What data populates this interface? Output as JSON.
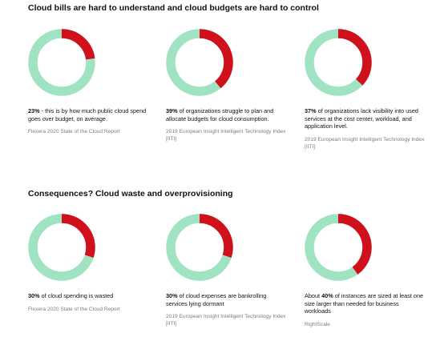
{
  "sections": [
    {
      "title": "Cloud bills are hard to understand and cloud budgets are hard to control",
      "stats": [
        {
          "pct": "23%",
          "text": " - this is by how much public cloud spend goes over budget, on average.",
          "source": "Flexera 2020 State of the Cloud Report"
        },
        {
          "pct": "39%",
          "text": " of organizations struggle to plan and allocate budgets for cloud consumption.",
          "source": "2019 European Insight Intelligent Technology Index [IITI]"
        },
        {
          "pct": "37%",
          "text": " of organizations lack visibility into used services at the cost center, workload, and application level.",
          "source": "2019 European Insight Intelligent Technology Index [IITI]"
        }
      ]
    },
    {
      "title": "Consequences? Cloud waste and overprovisioning",
      "stats": [
        {
          "pct": "30%",
          "text": " of cloud spending is wasted",
          "source": "Flexera 2020 State of the Cloud Report"
        },
        {
          "pct": "30%",
          "text": " of cloud expenses are bankrolling services lying dormant",
          "source": "2019 European Insight Intelligent Technology Index [IITI]"
        },
        {
          "prefix": "About ",
          "pct": "40%",
          "text": " of instances are sized at least one size larger than needed for business workloads",
          "source": "RightScale"
        }
      ]
    }
  ],
  "colors": {
    "highlight": "#d0101a",
    "remainder": "#9fe3c2"
  },
  "chart_data": [
    {
      "type": "pie",
      "values": [
        23,
        77
      ]
    },
    {
      "type": "pie",
      "values": [
        39,
        61
      ]
    },
    {
      "type": "pie",
      "values": [
        37,
        63
      ]
    },
    {
      "type": "pie",
      "values": [
        30,
        70
      ]
    },
    {
      "type": "pie",
      "values": [
        30,
        70
      ]
    },
    {
      "type": "pie",
      "values": [
        40,
        60
      ]
    }
  ]
}
